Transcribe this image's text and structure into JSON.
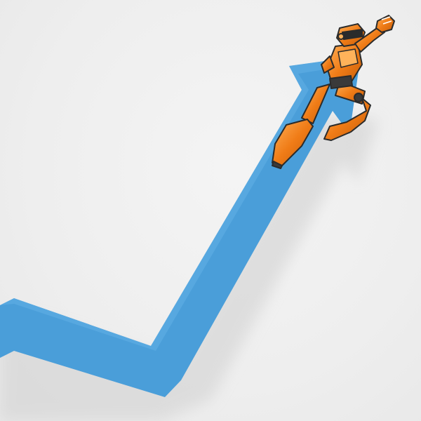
{
  "scene": {
    "background_color": "#efefef",
    "arrow_color": "#4a9ed9",
    "shadow_color": "#d9d9d9",
    "robot_primary_color": "#f07c17",
    "robot_highlight_color": "#ffb25a",
    "robot_dark_color": "#3a3a3a",
    "icons": [
      "trend-arrow-icon",
      "robot-figure-icon"
    ]
  }
}
